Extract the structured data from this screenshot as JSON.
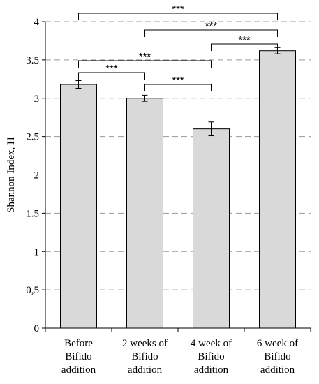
{
  "chart_data": {
    "type": "bar",
    "categories": [
      [
        "Before",
        "Bifido",
        "addition"
      ],
      [
        "2 weeks of",
        "Bifido",
        "addition"
      ],
      [
        "4 week of",
        "Bifido",
        "addition"
      ],
      [
        "6 week of",
        "Bifido",
        "addition"
      ]
    ],
    "values": [
      3.18,
      3.0,
      2.6,
      3.62
    ],
    "errors": [
      0.05,
      0.04,
      0.09,
      0.04
    ],
    "title": "",
    "xlabel": "",
    "ylabel": "Shannon Index, H",
    "ylim": [
      0,
      4
    ],
    "yticks": [
      "0",
      "0,5",
      "1",
      "1.5",
      "2",
      "2.5",
      "3",
      "3.5",
      "4"
    ],
    "grid": true,
    "bar_color": "#d9d9d9",
    "significance": [
      {
        "from": 0,
        "to": 3,
        "label": "***"
      },
      {
        "from": 1,
        "to": 3,
        "label": "***"
      },
      {
        "from": 2,
        "to": 3,
        "label": "***"
      },
      {
        "from": 0,
        "to": 2,
        "label": "***"
      },
      {
        "from": 0,
        "to": 1,
        "label": "***"
      },
      {
        "from": 1,
        "to": 2,
        "label": "***"
      }
    ]
  }
}
